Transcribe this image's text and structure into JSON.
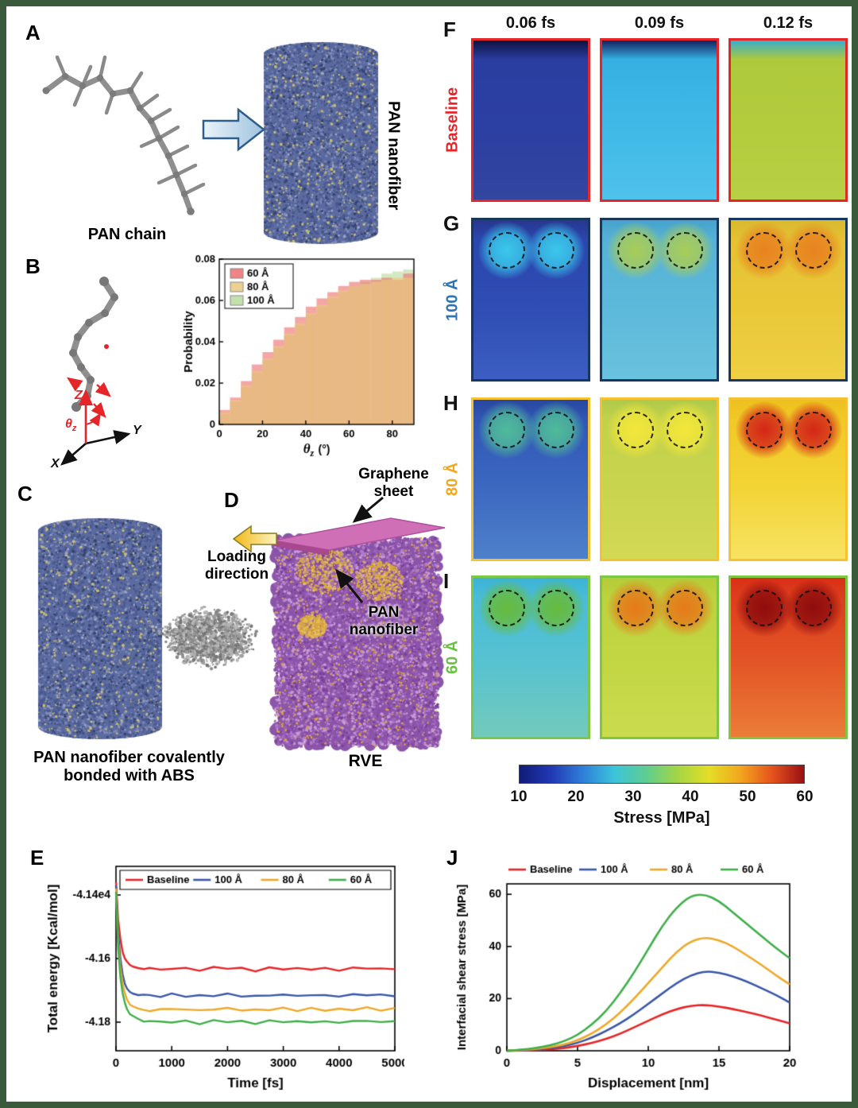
{
  "frame": {
    "border_color": "#3b5a3b",
    "background": "#ffffff"
  },
  "panel_a": {
    "label": "A",
    "chain_caption": "PAN chain",
    "fiber_caption": "PAN nanofiber"
  },
  "panel_b": {
    "label": "B",
    "axis_z": "Z",
    "axis_y": "Y",
    "axis_x": "X",
    "theta": "θ",
    "theta_sub": "z"
  },
  "panel_c": {
    "label": "C",
    "caption_line1": "PAN nanofiber covalently",
    "caption_line2": "bonded with ABS"
  },
  "panel_d": {
    "label": "D",
    "graphene_line1": "Graphene",
    "graphene_line2": "sheet",
    "loading_line1": "Loading",
    "loading_line2": "direction",
    "pan_line1": "PAN",
    "pan_line2": "nanofiber",
    "caption": "RVE"
  },
  "panel_e": {
    "label": "E"
  },
  "panel_j": {
    "label": "J"
  },
  "heatmaps": {
    "col_headers": [
      "0.06 fs",
      "0.09 fs",
      "0.12 fs"
    ],
    "rows": [
      {
        "panel": "F",
        "label": "Baseline",
        "label_color": "#e52528",
        "border_color": "#e52528",
        "circles": false,
        "cells": [
          {
            "stops": [
              "#0c123e",
              "#2a3da0",
              "#2c3fa2",
              "#32459f"
            ],
            "circle": null
          },
          {
            "stops": [
              "#15215f",
              "#35b0e2",
              "#40b9e7",
              "#4ec2ea"
            ],
            "circle": null
          },
          {
            "stops": [
              "#39aecb",
              "#aec93c",
              "#b3cc3e",
              "#b8d044"
            ],
            "circle": null
          }
        ]
      },
      {
        "panel": "G",
        "label": "100 Å",
        "label_color": "#2e75b6",
        "border_color": "#17375e",
        "circles": true,
        "cells": [
          {
            "stops": [
              "#26378e",
              "#2b46ae",
              "#2f4db4",
              "#3c5ec2"
            ],
            "circle": "#3ac8ec"
          },
          {
            "stops": [
              "#47a2cc",
              "#55b2d6",
              "#5db9da",
              "#69c2de"
            ],
            "circle": "#a8cc58"
          },
          {
            "stops": [
              "#d9b92f",
              "#e5c133",
              "#e9c838",
              "#efd044"
            ],
            "circle": "#e8821f"
          }
        ]
      },
      {
        "panel": "H",
        "label": "80 Å",
        "label_color": "#f2a71e",
        "border_color": "#f5c332",
        "circles": true,
        "cells": [
          {
            "stops": [
              "#28479f",
              "#3056b5",
              "#3c68c0",
              "#4e80ca"
            ],
            "circle": "#4fbb9a"
          },
          {
            "stops": [
              "#afc94a",
              "#c1d14b",
              "#c9d44e",
              "#d3d955"
            ],
            "circle": "#f2e63a"
          },
          {
            "stops": [
              "#eec01e",
              "#f0c926",
              "#f3d436",
              "#f7e262"
            ],
            "circle": "#d42618"
          }
        ]
      },
      {
        "panel": "I",
        "label": "60 Å",
        "label_color": "#6cbf45",
        "border_color": "#7cc842",
        "circles": true,
        "cells": [
          {
            "stops": [
              "#3cb2d6",
              "#49bcd8",
              "#58c2d0",
              "#73cabc"
            ],
            "circle": "#66bb3e"
          },
          {
            "stops": [
              "#b3cc38",
              "#bdd23e",
              "#c3d644",
              "#cbdb4e"
            ],
            "circle": "#e67a1a"
          },
          {
            "stops": [
              "#d92f17",
              "#dd3e1d",
              "#e35627",
              "#eb7d38"
            ],
            "circle": "#8f0d0d"
          }
        ]
      }
    ],
    "colorbar": {
      "ticks": [
        "10",
        "20",
        "30",
        "40",
        "50",
        "60"
      ],
      "label": "Stress [MPa]",
      "gradient": [
        "#101c78",
        "#2138b4",
        "#2f7fd9",
        "#3cc4da",
        "#5ecd92",
        "#a4d644",
        "#e4de26",
        "#f2a51d",
        "#e5521d",
        "#9a0f12"
      ]
    }
  },
  "art": {
    "fiber_palette": [
      "#49598f",
      "#5e6ea6",
      "#7d89b8",
      "#35436f",
      "#c9bd72",
      "#9aa3c4"
    ],
    "fiber_base": "#5b6a9e",
    "abs_palette": [
      "#9f9f9f",
      "#8a8a8a",
      "#b5b5b5",
      "#757575"
    ],
    "rve_palette": [
      "#9a62b8",
      "#8b50ab",
      "#b07cc8",
      "#7a3f99",
      "#c89ad6"
    ],
    "rve_base": "#8b55a8",
    "rve_accent": "#d8a83c",
    "graphene_color": "#cf6fb5",
    "graphene_edge": "#a8488f",
    "chain_color": "#8f8f8f",
    "annotation_red": "#e52528"
  },
  "chart_data": [
    {
      "id": "orientation_histogram",
      "type": "bar",
      "panel": "B",
      "xlabel_theta": "θ",
      "xlabel_sub": "z",
      "xlabel_unit": "(°)",
      "ylabel": "Probability",
      "xlim": [
        0,
        90
      ],
      "ylim": [
        0,
        0.08
      ],
      "xticks": [
        0,
        20,
        40,
        60,
        80
      ],
      "yticks": [
        0,
        0.02,
        0.04,
        0.06,
        0.08
      ],
      "bin_start": 0,
      "bin_width": 5,
      "legend_position": "top-left",
      "series": [
        {
          "name": "60 Å",
          "color": "#ee6f6f",
          "values": [
            0.007,
            0.013,
            0.021,
            0.029,
            0.035,
            0.041,
            0.047,
            0.052,
            0.057,
            0.061,
            0.064,
            0.067,
            0.069,
            0.07,
            0.07,
            0.071,
            0.07,
            0.073
          ]
        },
        {
          "name": "80 Å",
          "color": "#eac97c",
          "values": [
            0.006,
            0.012,
            0.019,
            0.026,
            0.032,
            0.038,
            0.044,
            0.049,
            0.054,
            0.058,
            0.062,
            0.065,
            0.067,
            0.068,
            0.069,
            0.07,
            0.071,
            0.071
          ]
        },
        {
          "name": "100 Å",
          "color": "#b9dc9c",
          "values": [
            0.005,
            0.011,
            0.018,
            0.025,
            0.031,
            0.037,
            0.043,
            0.048,
            0.053,
            0.057,
            0.061,
            0.064,
            0.067,
            0.069,
            0.071,
            0.073,
            0.074,
            0.075
          ]
        }
      ]
    },
    {
      "id": "total_energy",
      "type": "line",
      "panel": "E",
      "xlabel": "Time [fs]",
      "ylabel": "Total energy [Kcal/mol]",
      "xlim": [
        0,
        5000
      ],
      "ylim": [
        -4.189,
        -4.131
      ],
      "xticks": [
        0,
        1000,
        2000,
        3000,
        4000,
        5000
      ],
      "yticks": [
        {
          "value": -4.14,
          "label": "-4.14e4"
        },
        {
          "value": -4.16,
          "label": "-4.16"
        },
        {
          "value": -4.18,
          "label": "-4.18"
        }
      ],
      "x": [
        0,
        40,
        80,
        120,
        160,
        200,
        250,
        300,
        400,
        500,
        600,
        800,
        1000,
        1250,
        1500,
        1750,
        2000,
        2250,
        2500,
        2750,
        3000,
        3250,
        3500,
        3750,
        4000,
        4250,
        4500,
        4750,
        5000
      ],
      "series": [
        {
          "name": "Baseline",
          "color": "#e52528",
          "values": [
            -4.136,
            -4.148,
            -4.154,
            -4.158,
            -4.16,
            -4.161,
            -4.162,
            -4.1625,
            -4.163,
            -4.1632,
            -4.1633,
            -4.1634,
            -4.163,
            -4.1632,
            -4.1635,
            -4.163,
            -4.1628,
            -4.1633,
            -4.1636,
            -4.1632,
            -4.163,
            -4.1634,
            -4.1631,
            -4.1633,
            -4.1635,
            -4.1631,
            -4.1629,
            -4.1633,
            -4.1632
          ]
        },
        {
          "name": "100 Å",
          "color": "#3a57a7",
          "values": [
            -4.137,
            -4.152,
            -4.16,
            -4.165,
            -4.168,
            -4.1695,
            -4.1705,
            -4.171,
            -4.1715,
            -4.1718,
            -4.1716,
            -4.1717,
            -4.1714,
            -4.1716,
            -4.1719,
            -4.1715,
            -4.1713,
            -4.1717,
            -4.1719,
            -4.1715,
            -4.1714,
            -4.1717,
            -4.1715,
            -4.1716,
            -4.1718,
            -4.1714,
            -4.1713,
            -4.1716,
            -4.1715
          ]
        },
        {
          "name": "80 Å",
          "color": "#eda827",
          "values": [
            -4.138,
            -4.155,
            -4.163,
            -4.168,
            -4.171,
            -4.173,
            -4.1745,
            -4.175,
            -4.1757,
            -4.176,
            -4.1761,
            -4.1762,
            -4.1758,
            -4.176,
            -4.1763,
            -4.1759,
            -4.1757,
            -4.1761,
            -4.1763,
            -4.1759,
            -4.1758,
            -4.1761,
            -4.1759,
            -4.176,
            -4.1762,
            -4.1758,
            -4.1757,
            -4.176,
            -4.1759
          ]
        },
        {
          "name": "60 Å",
          "color": "#3fae49",
          "values": [
            -4.139,
            -4.157,
            -4.166,
            -4.171,
            -4.174,
            -4.176,
            -4.1775,
            -4.178,
            -4.179,
            -4.1795,
            -4.1798,
            -4.18,
            -4.1797,
            -4.1799,
            -4.1802,
            -4.1798,
            -4.1796,
            -4.18,
            -4.1802,
            -4.1798,
            -4.1797,
            -4.18,
            -4.1798,
            -4.1799,
            -4.1801,
            -4.1797,
            -4.1796,
            -4.1799,
            -4.1798
          ]
        }
      ]
    },
    {
      "id": "interfacial_shear",
      "type": "line",
      "panel": "J",
      "xlabel": "Displacement [nm]",
      "ylabel": "Interfacial shear stress [MPa]",
      "xlim": [
        0,
        20
      ],
      "ylim": [
        0,
        64
      ],
      "xticks": [
        0,
        5,
        10,
        15,
        20
      ],
      "yticks": [
        {
          "value": 0,
          "label": "0"
        },
        {
          "value": 20,
          "label": "20"
        },
        {
          "value": 40,
          "label": "40"
        },
        {
          "value": 60,
          "label": "60"
        }
      ],
      "x": [
        0,
        1,
        2,
        3,
        4,
        5,
        6,
        7,
        8,
        9,
        10,
        11,
        12,
        13,
        14,
        15,
        16,
        17,
        18,
        19,
        20
      ],
      "series": [
        {
          "name": "Baseline",
          "color": "#e52528",
          "values": [
            0,
            0.1,
            0.3,
            0.6,
            1,
            1.8,
            3,
            4.5,
            6.5,
            9,
            11.5,
            14,
            16,
            17.3,
            17.6,
            17,
            16,
            14.8,
            13.5,
            12,
            10.5
          ]
        },
        {
          "name": "100 Å",
          "color": "#3a57a7",
          "values": [
            0,
            0.2,
            0.5,
            1,
            1.7,
            3,
            5,
            7.5,
            10.5,
            14,
            18,
            22,
            26,
            29,
            30.5,
            30,
            28.5,
            26.5,
            24,
            21.5,
            18.5
          ]
        },
        {
          "name": "80 Å",
          "color": "#eda827",
          "values": [
            0,
            0.3,
            0.7,
            1.3,
            2.3,
            4,
            6.5,
            10,
            14.5,
            20,
            26,
            32,
            38,
            42,
            43.5,
            42.5,
            40,
            36.5,
            33,
            29,
            25.5
          ]
        },
        {
          "name": "60 Å",
          "color": "#3fae49",
          "values": [
            0,
            0.4,
            1,
            2,
            3.5,
            6,
            10,
            15,
            22,
            30,
            39,
            48,
            55,
            59.5,
            60,
            57.5,
            53,
            48.5,
            44,
            39.5,
            35.5
          ]
        }
      ]
    }
  ]
}
